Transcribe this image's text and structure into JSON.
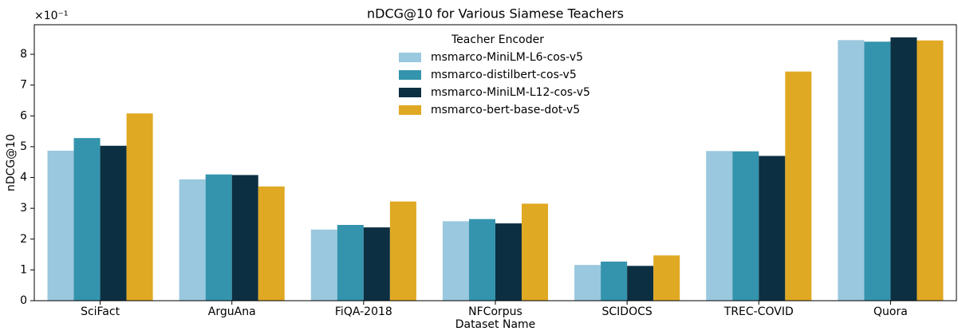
{
  "chart_data": {
    "type": "bar",
    "title": "nDCG@10 for Various Siamese Teachers",
    "y_offset_label": "×10⁻¹",
    "xlabel": "Dataset Name",
    "ylabel": "nDCG@10",
    "legend_title": "Teacher Encoder",
    "legend_position": "upper center",
    "categories": [
      "SciFact",
      "ArguAna",
      "FiQA-2018",
      "NFCorpus",
      "SCIDOCS",
      "TREC-COVID",
      "Quora"
    ],
    "series": [
      {
        "name": "msmarco-MiniLM-L6-cos-v5",
        "color": "#9ac8de",
        "values": [
          4.87,
          3.94,
          2.31,
          2.58,
          1.16,
          4.86,
          8.46
        ]
      },
      {
        "name": "msmarco-distilbert-cos-v5",
        "color": "#3494ad",
        "values": [
          5.28,
          4.1,
          2.46,
          2.65,
          1.27,
          4.85,
          8.41
        ]
      },
      {
        "name": "msmarco-MiniLM-L12-cos-v5",
        "color": "#0d2f42",
        "values": [
          5.03,
          4.08,
          2.38,
          2.51,
          1.13,
          4.7,
          8.55
        ]
      },
      {
        "name": "msmarco-bert-base-dot-v5",
        "color": "#e0a923",
        "values": [
          6.08,
          3.71,
          3.22,
          3.15,
          1.47,
          7.44,
          8.45
        ]
      }
    ],
    "ylim": [
      0,
      8.96
    ],
    "yticks": [
      0,
      1,
      2,
      3,
      4,
      5,
      6,
      7,
      8
    ],
    "grid": false
  }
}
